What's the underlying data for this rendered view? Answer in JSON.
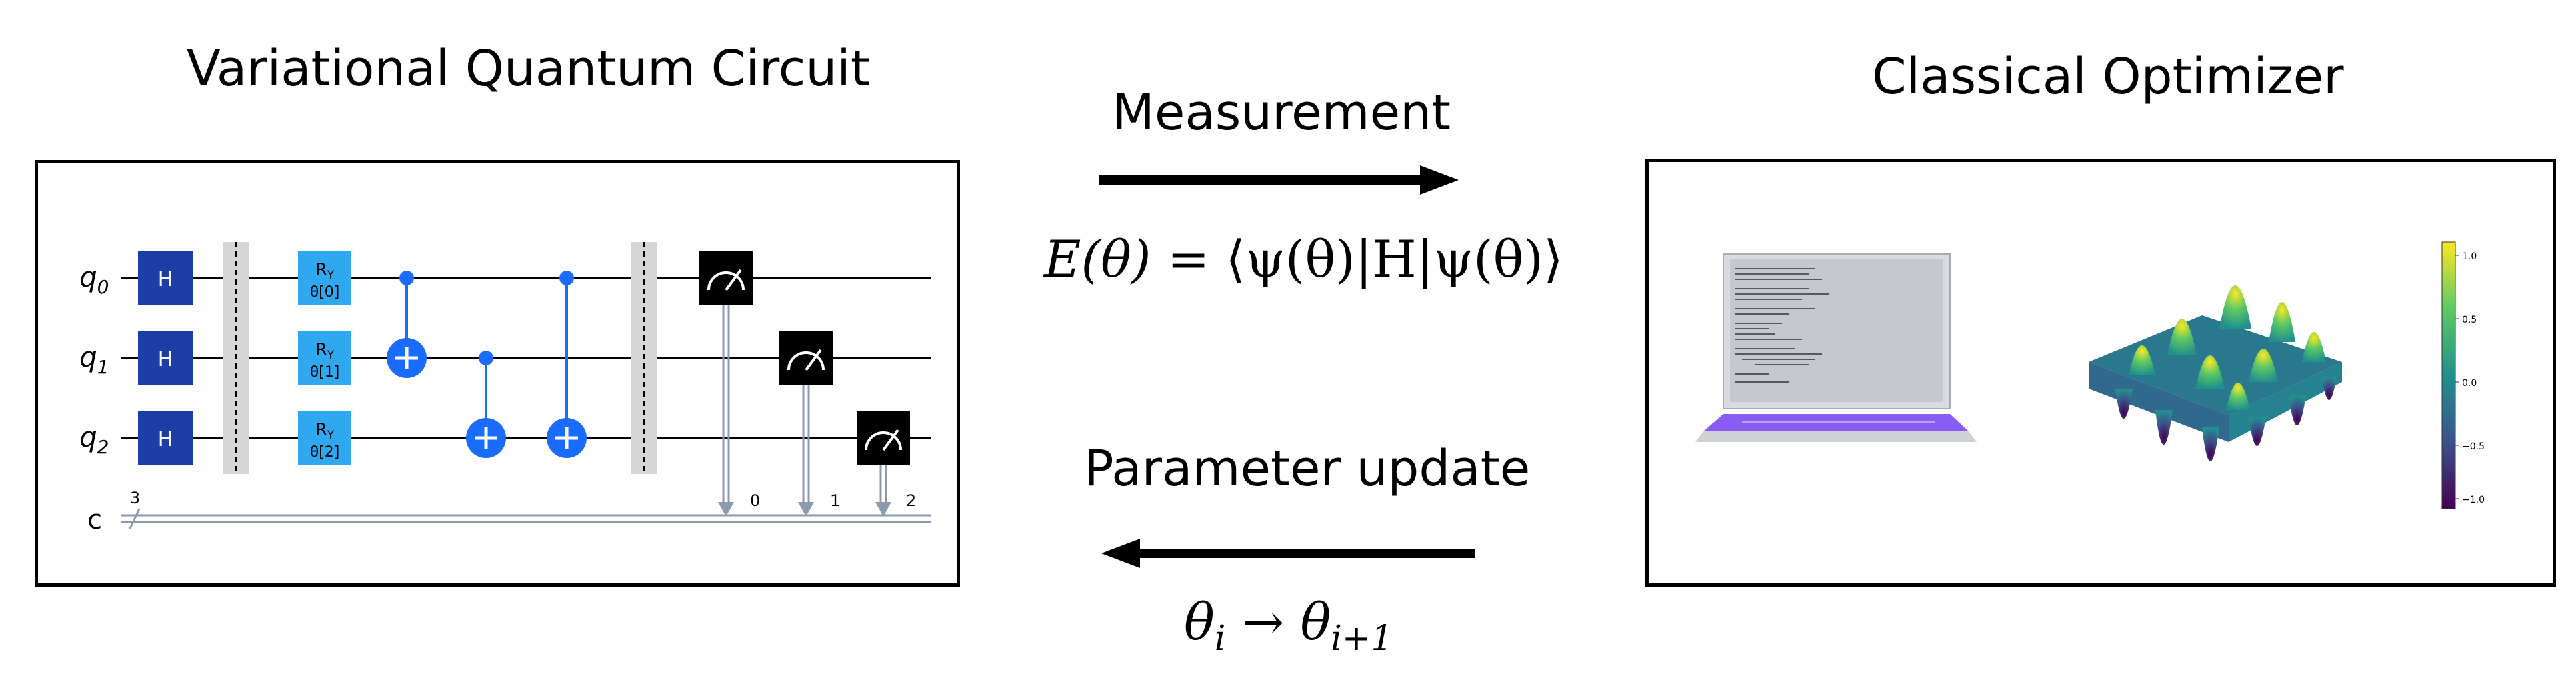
{
  "titles": {
    "left": "Variational Quantum Circuit",
    "right": "Classical Optimizer"
  },
  "flow": {
    "top_label": "Measurement",
    "top_formula_lhs": "E(θ)",
    "top_formula_rhs": "= ⟨ψ(θ)|H|ψ(θ)⟩",
    "bottom_label": "Parameter update",
    "bottom_formula_a": "θ",
    "bottom_formula_a_sub": "i",
    "bottom_formula_arrow": "→",
    "bottom_formula_b": "θ",
    "bottom_formula_b_sub": "i+1"
  },
  "circuit": {
    "qubits": [
      {
        "label": "q",
        "sub": "0"
      },
      {
        "label": "q",
        "sub": "1"
      },
      {
        "label": "q",
        "sub": "2"
      }
    ],
    "classical_label": "c",
    "classical_count": "3",
    "h_label": "H",
    "ry_gates": [
      {
        "top": "R",
        "top_sub": "Y",
        "param": "θ[0]"
      },
      {
        "top": "R",
        "top_sub": "Y",
        "param": "θ[1]"
      },
      {
        "top": "R",
        "top_sub": "Y",
        "param": "θ[2]"
      }
    ],
    "measure_bits": [
      "0",
      "1",
      "2"
    ],
    "colors": {
      "h_gate": "#1c3ea6",
      "ry_gate": "#2fa8ef",
      "cnot": "#1a6cff",
      "measure": "#000000",
      "barrier": "#d6d6d6",
      "classical_wire": "#8b9aad"
    }
  },
  "optimizer": {
    "colorbar_ticks": [
      "1.0",
      "0.5",
      "0.0",
      "−0.5",
      "−1.0"
    ],
    "colormap": [
      "#440154",
      "#3b528b",
      "#21918c",
      "#5ec962",
      "#fde725"
    ]
  }
}
